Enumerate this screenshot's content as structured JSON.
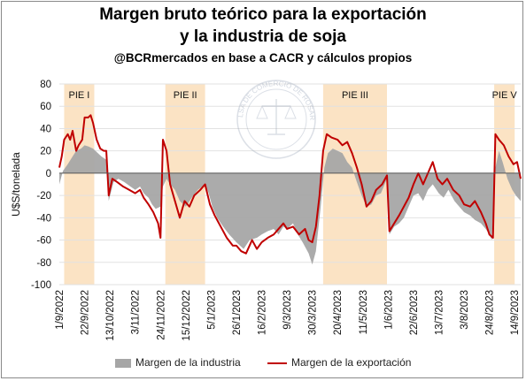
{
  "header": {
    "title_line1": "Margen bruto teórico para la exportación",
    "title_line2": "y la industria de soja",
    "subtitle": "@BCRmercados en base a CACR y cálculos propios"
  },
  "colors": {
    "industry": "#a6a6a6",
    "export": "#c00000",
    "pie_band": "#fbe3c4",
    "grid": "#e2e2e2"
  },
  "legend": {
    "industry_label": "Margen de la industria",
    "export_label": "Margen de la exportación"
  },
  "watermark_text": "BOLSA DE COMERCIO DE ROSARIO",
  "chart_data": {
    "type": "area",
    "title": "Margen bruto teórico para la exportación y la industria de soja",
    "ylabel": "U$S/tonelada",
    "ylim": [
      -100,
      80
    ],
    "yticks": [
      -100,
      -80,
      -60,
      -40,
      -20,
      0,
      20,
      40,
      60,
      80
    ],
    "xlim": [
      "2022-09-01",
      "2023-09-19"
    ],
    "xtick_labels": [
      "1/9/2022",
      "22/9/2022",
      "13/10/2022",
      "3/11/2022",
      "24/11/2022",
      "15/12/2022",
      "5/1/2023",
      "26/1/2023",
      "16/2/2023",
      "9/3/2023",
      "30/3/2023",
      "20/4/2023",
      "11/5/2023",
      "1/6/2023",
      "22/6/2023",
      "13/7/2023",
      "3/8/2023",
      "24/8/2023",
      "14/9/2023"
    ],
    "xtick_dates": [
      "2022-09-01",
      "2022-09-22",
      "2022-10-13",
      "2022-11-03",
      "2022-11-24",
      "2022-12-15",
      "2023-01-05",
      "2023-01-26",
      "2023-02-16",
      "2023-03-09",
      "2023-03-30",
      "2023-04-20",
      "2023-05-11",
      "2023-06-01",
      "2023-06-22",
      "2023-07-13",
      "2023-08-03",
      "2023-08-24",
      "2023-09-14"
    ],
    "grid": "horizontal",
    "legend_position": "bottom",
    "bands": [
      {
        "label": "PIE I",
        "start": "2022-09-05",
        "end": "2022-09-30"
      },
      {
        "label": "PIE II",
        "start": "2022-11-28",
        "end": "2022-12-31"
      },
      {
        "label": "PIE III",
        "start": "2023-04-08",
        "end": "2023-05-31"
      },
      {
        "label": "PIE V",
        "start": "2023-08-28",
        "end": "2023-09-14"
      }
    ],
    "series": [
      {
        "name": "Margen de la industria",
        "kind": "area",
        "points": [
          [
            "2022-09-01",
            -10
          ],
          [
            "2022-09-04",
            2
          ],
          [
            "2022-09-08",
            8
          ],
          [
            "2022-09-12",
            15
          ],
          [
            "2022-09-15",
            20
          ],
          [
            "2022-09-19",
            22
          ],
          [
            "2022-09-22",
            25
          ],
          [
            "2022-09-25",
            24
          ],
          [
            "2022-09-29",
            22
          ],
          [
            "2022-10-03",
            18
          ],
          [
            "2022-10-06",
            15
          ],
          [
            "2022-10-10",
            12
          ],
          [
            "2022-10-12",
            -25
          ],
          [
            "2022-10-16",
            -8
          ],
          [
            "2022-10-20",
            -5
          ],
          [
            "2022-10-25",
            -8
          ],
          [
            "2022-10-30",
            -12
          ],
          [
            "2022-11-03",
            -15
          ],
          [
            "2022-11-07",
            -12
          ],
          [
            "2022-11-10",
            -18
          ],
          [
            "2022-11-14",
            -22
          ],
          [
            "2022-11-17",
            -28
          ],
          [
            "2022-11-20",
            -32
          ],
          [
            "2022-11-24",
            -30
          ],
          [
            "2022-11-26",
            -12
          ],
          [
            "2022-11-29",
            -5
          ],
          [
            "2022-12-02",
            -10
          ],
          [
            "2022-12-06",
            -15
          ],
          [
            "2022-12-10",
            -25
          ],
          [
            "2022-12-15",
            -30
          ],
          [
            "2022-12-20",
            -22
          ],
          [
            "2022-12-25",
            -15
          ],
          [
            "2022-12-31",
            -10
          ],
          [
            "2023-01-03",
            -18
          ],
          [
            "2023-01-06",
            -30
          ],
          [
            "2023-01-10",
            -40
          ],
          [
            "2023-01-15",
            -48
          ],
          [
            "2023-01-20",
            -55
          ],
          [
            "2023-01-26",
            -62
          ],
          [
            "2023-02-01",
            -68
          ],
          [
            "2023-02-06",
            -60
          ],
          [
            "2023-02-12",
            -58
          ],
          [
            "2023-02-16",
            -55
          ],
          [
            "2023-02-21",
            -52
          ],
          [
            "2023-02-26",
            -50
          ],
          [
            "2023-03-02",
            -55
          ],
          [
            "2023-03-06",
            -48
          ],
          [
            "2023-03-09",
            -50
          ],
          [
            "2023-03-14",
            -45
          ],
          [
            "2023-03-18",
            -55
          ],
          [
            "2023-03-22",
            -62
          ],
          [
            "2023-03-27",
            -72
          ],
          [
            "2023-03-30",
            -82
          ],
          [
            "2023-04-02",
            -70
          ],
          [
            "2023-04-06",
            -30
          ],
          [
            "2023-04-09",
            5
          ],
          [
            "2023-04-12",
            18
          ],
          [
            "2023-04-16",
            22
          ],
          [
            "2023-04-20",
            20
          ],
          [
            "2023-04-24",
            18
          ],
          [
            "2023-04-28",
            10
          ],
          [
            "2023-05-02",
            5
          ],
          [
            "2023-05-06",
            -8
          ],
          [
            "2023-05-10",
            -20
          ],
          [
            "2023-05-14",
            -30
          ],
          [
            "2023-05-18",
            -28
          ],
          [
            "2023-05-22",
            -20
          ],
          [
            "2023-05-26",
            -18
          ],
          [
            "2023-05-31",
            -5
          ],
          [
            "2023-06-02",
            -55
          ],
          [
            "2023-06-06",
            -48
          ],
          [
            "2023-06-10",
            -45
          ],
          [
            "2023-06-14",
            -40
          ],
          [
            "2023-06-18",
            -30
          ],
          [
            "2023-06-22",
            -20
          ],
          [
            "2023-06-26",
            -18
          ],
          [
            "2023-06-30",
            -25
          ],
          [
            "2023-07-04",
            -15
          ],
          [
            "2023-07-08",
            -10
          ],
          [
            "2023-07-13",
            -18
          ],
          [
            "2023-07-17",
            -22
          ],
          [
            "2023-07-21",
            -15
          ],
          [
            "2023-07-26",
            -25
          ],
          [
            "2023-07-30",
            -30
          ],
          [
            "2023-08-03",
            -35
          ],
          [
            "2023-08-08",
            -38
          ],
          [
            "2023-08-12",
            -42
          ],
          [
            "2023-08-17",
            -45
          ],
          [
            "2023-08-21",
            -50
          ],
          [
            "2023-08-24",
            -55
          ],
          [
            "2023-08-26",
            -60
          ],
          [
            "2023-08-29",
            5
          ],
          [
            "2023-09-01",
            20
          ],
          [
            "2023-09-04",
            10
          ],
          [
            "2023-09-08",
            -5
          ],
          [
            "2023-09-12",
            -15
          ],
          [
            "2023-09-15",
            -20
          ],
          [
            "2023-09-19",
            -25
          ]
        ]
      },
      {
        "name": "Margen de la exportación",
        "kind": "line",
        "points": [
          [
            "2022-09-01",
            5
          ],
          [
            "2022-09-03",
            15
          ],
          [
            "2022-09-05",
            30
          ],
          [
            "2022-09-08",
            35
          ],
          [
            "2022-09-10",
            30
          ],
          [
            "2022-09-12",
            38
          ],
          [
            "2022-09-15",
            20
          ],
          [
            "2022-09-17",
            25
          ],
          [
            "2022-09-20",
            30
          ],
          [
            "2022-09-22",
            50
          ],
          [
            "2022-09-25",
            50
          ],
          [
            "2022-09-27",
            52
          ],
          [
            "2022-09-29",
            45
          ],
          [
            "2022-10-02",
            30
          ],
          [
            "2022-10-05",
            22
          ],
          [
            "2022-10-08",
            20
          ],
          [
            "2022-10-10",
            20
          ],
          [
            "2022-10-12",
            -20
          ],
          [
            "2022-10-15",
            -5
          ],
          [
            "2022-10-19",
            -8
          ],
          [
            "2022-10-24",
            -12
          ],
          [
            "2022-10-29",
            -15
          ],
          [
            "2022-11-03",
            -18
          ],
          [
            "2022-11-07",
            -15
          ],
          [
            "2022-11-10",
            -22
          ],
          [
            "2022-11-14",
            -28
          ],
          [
            "2022-11-18",
            -35
          ],
          [
            "2022-11-22",
            -45
          ],
          [
            "2022-11-24",
            -58
          ],
          [
            "2022-11-26",
            30
          ],
          [
            "2022-11-29",
            20
          ],
          [
            "2022-12-02",
            -10
          ],
          [
            "2022-12-06",
            -25
          ],
          [
            "2022-12-10",
            -40
          ],
          [
            "2022-12-14",
            -25
          ],
          [
            "2022-12-18",
            -30
          ],
          [
            "2022-12-22",
            -20
          ],
          [
            "2022-12-27",
            -15
          ],
          [
            "2022-12-31",
            -10
          ],
          [
            "2023-01-04",
            -28
          ],
          [
            "2023-01-08",
            -38
          ],
          [
            "2023-01-13",
            -48
          ],
          [
            "2023-01-18",
            -58
          ],
          [
            "2023-01-23",
            -65
          ],
          [
            "2023-01-26",
            -65
          ],
          [
            "2023-01-30",
            -70
          ],
          [
            "2023-02-03",
            -72
          ],
          [
            "2023-02-08",
            -60
          ],
          [
            "2023-02-12",
            -68
          ],
          [
            "2023-02-16",
            -62
          ],
          [
            "2023-02-21",
            -58
          ],
          [
            "2023-02-26",
            -55
          ],
          [
            "2023-03-02",
            -50
          ],
          [
            "2023-03-06",
            -45
          ],
          [
            "2023-03-09",
            -50
          ],
          [
            "2023-03-14",
            -48
          ],
          [
            "2023-03-19",
            -55
          ],
          [
            "2023-03-24",
            -50
          ],
          [
            "2023-03-27",
            -60
          ],
          [
            "2023-03-30",
            -62
          ],
          [
            "2023-04-02",
            -48
          ],
          [
            "2023-04-05",
            -20
          ],
          [
            "2023-04-08",
            20
          ],
          [
            "2023-04-11",
            35
          ],
          [
            "2023-04-15",
            32
          ],
          [
            "2023-04-20",
            30
          ],
          [
            "2023-04-24",
            25
          ],
          [
            "2023-04-28",
            28
          ],
          [
            "2023-05-02",
            18
          ],
          [
            "2023-05-06",
            5
          ],
          [
            "2023-05-10",
            -10
          ],
          [
            "2023-05-14",
            -30
          ],
          [
            "2023-05-18",
            -25
          ],
          [
            "2023-05-22",
            -15
          ],
          [
            "2023-05-27",
            -10
          ],
          [
            "2023-05-31",
            -2
          ],
          [
            "2023-06-02",
            -52
          ],
          [
            "2023-06-06",
            -45
          ],
          [
            "2023-06-10",
            -38
          ],
          [
            "2023-06-14",
            -30
          ],
          [
            "2023-06-18",
            -22
          ],
          [
            "2023-06-22",
            -10
          ],
          [
            "2023-06-26",
            0
          ],
          [
            "2023-06-30",
            -10
          ],
          [
            "2023-07-04",
            0
          ],
          [
            "2023-07-08",
            10
          ],
          [
            "2023-07-12",
            -5
          ],
          [
            "2023-07-16",
            -10
          ],
          [
            "2023-07-20",
            -5
          ],
          [
            "2023-07-25",
            -15
          ],
          [
            "2023-07-30",
            -20
          ],
          [
            "2023-08-03",
            -28
          ],
          [
            "2023-08-08",
            -30
          ],
          [
            "2023-08-12",
            -25
          ],
          [
            "2023-08-17",
            -35
          ],
          [
            "2023-08-21",
            -45
          ],
          [
            "2023-08-24",
            -55
          ],
          [
            "2023-08-27",
            -58
          ],
          [
            "2023-08-29",
            35
          ],
          [
            "2023-09-01",
            30
          ],
          [
            "2023-09-05",
            25
          ],
          [
            "2023-09-09",
            15
          ],
          [
            "2023-09-13",
            8
          ],
          [
            "2023-09-16",
            10
          ],
          [
            "2023-09-19",
            -5
          ]
        ]
      }
    ]
  }
}
